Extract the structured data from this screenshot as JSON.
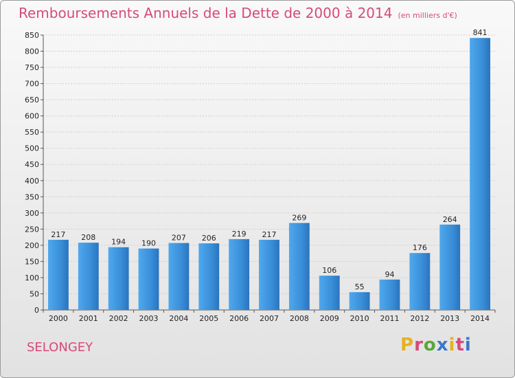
{
  "header": {
    "title": "Remboursements Annuels de la Dette de 2000 à 2014",
    "unit": "(en milliers d'€)"
  },
  "footer": {
    "city": "SELONGEY",
    "logo": "Proxiti",
    "logo_colors": [
      "#e8b020",
      "#d64a7a",
      "#58a838",
      "#3a78c8",
      "#e8b020",
      "#d64a7a",
      "#3a78c8"
    ]
  },
  "chart_data": {
    "type": "bar",
    "title": "Remboursements Annuels de la Dette de 2000 à 2014",
    "subtitle": "(en milliers d'€)",
    "xlabel": "",
    "ylabel": "",
    "categories": [
      "2000",
      "2001",
      "2002",
      "2003",
      "2004",
      "2005",
      "2006",
      "2007",
      "2008",
      "2009",
      "2010",
      "2011",
      "2012",
      "2013",
      "2014"
    ],
    "values": [
      217,
      208,
      194,
      190,
      207,
      206,
      219,
      217,
      269,
      106,
      55,
      94,
      176,
      264,
      841
    ],
    "ylim": [
      0,
      850
    ],
    "yticks": [
      0,
      50,
      100,
      150,
      200,
      250,
      300,
      350,
      400,
      450,
      500,
      550,
      600,
      650,
      700,
      750,
      800,
      850
    ],
    "grid": true,
    "legend": "none",
    "bar_color": "#3a8fd8"
  }
}
